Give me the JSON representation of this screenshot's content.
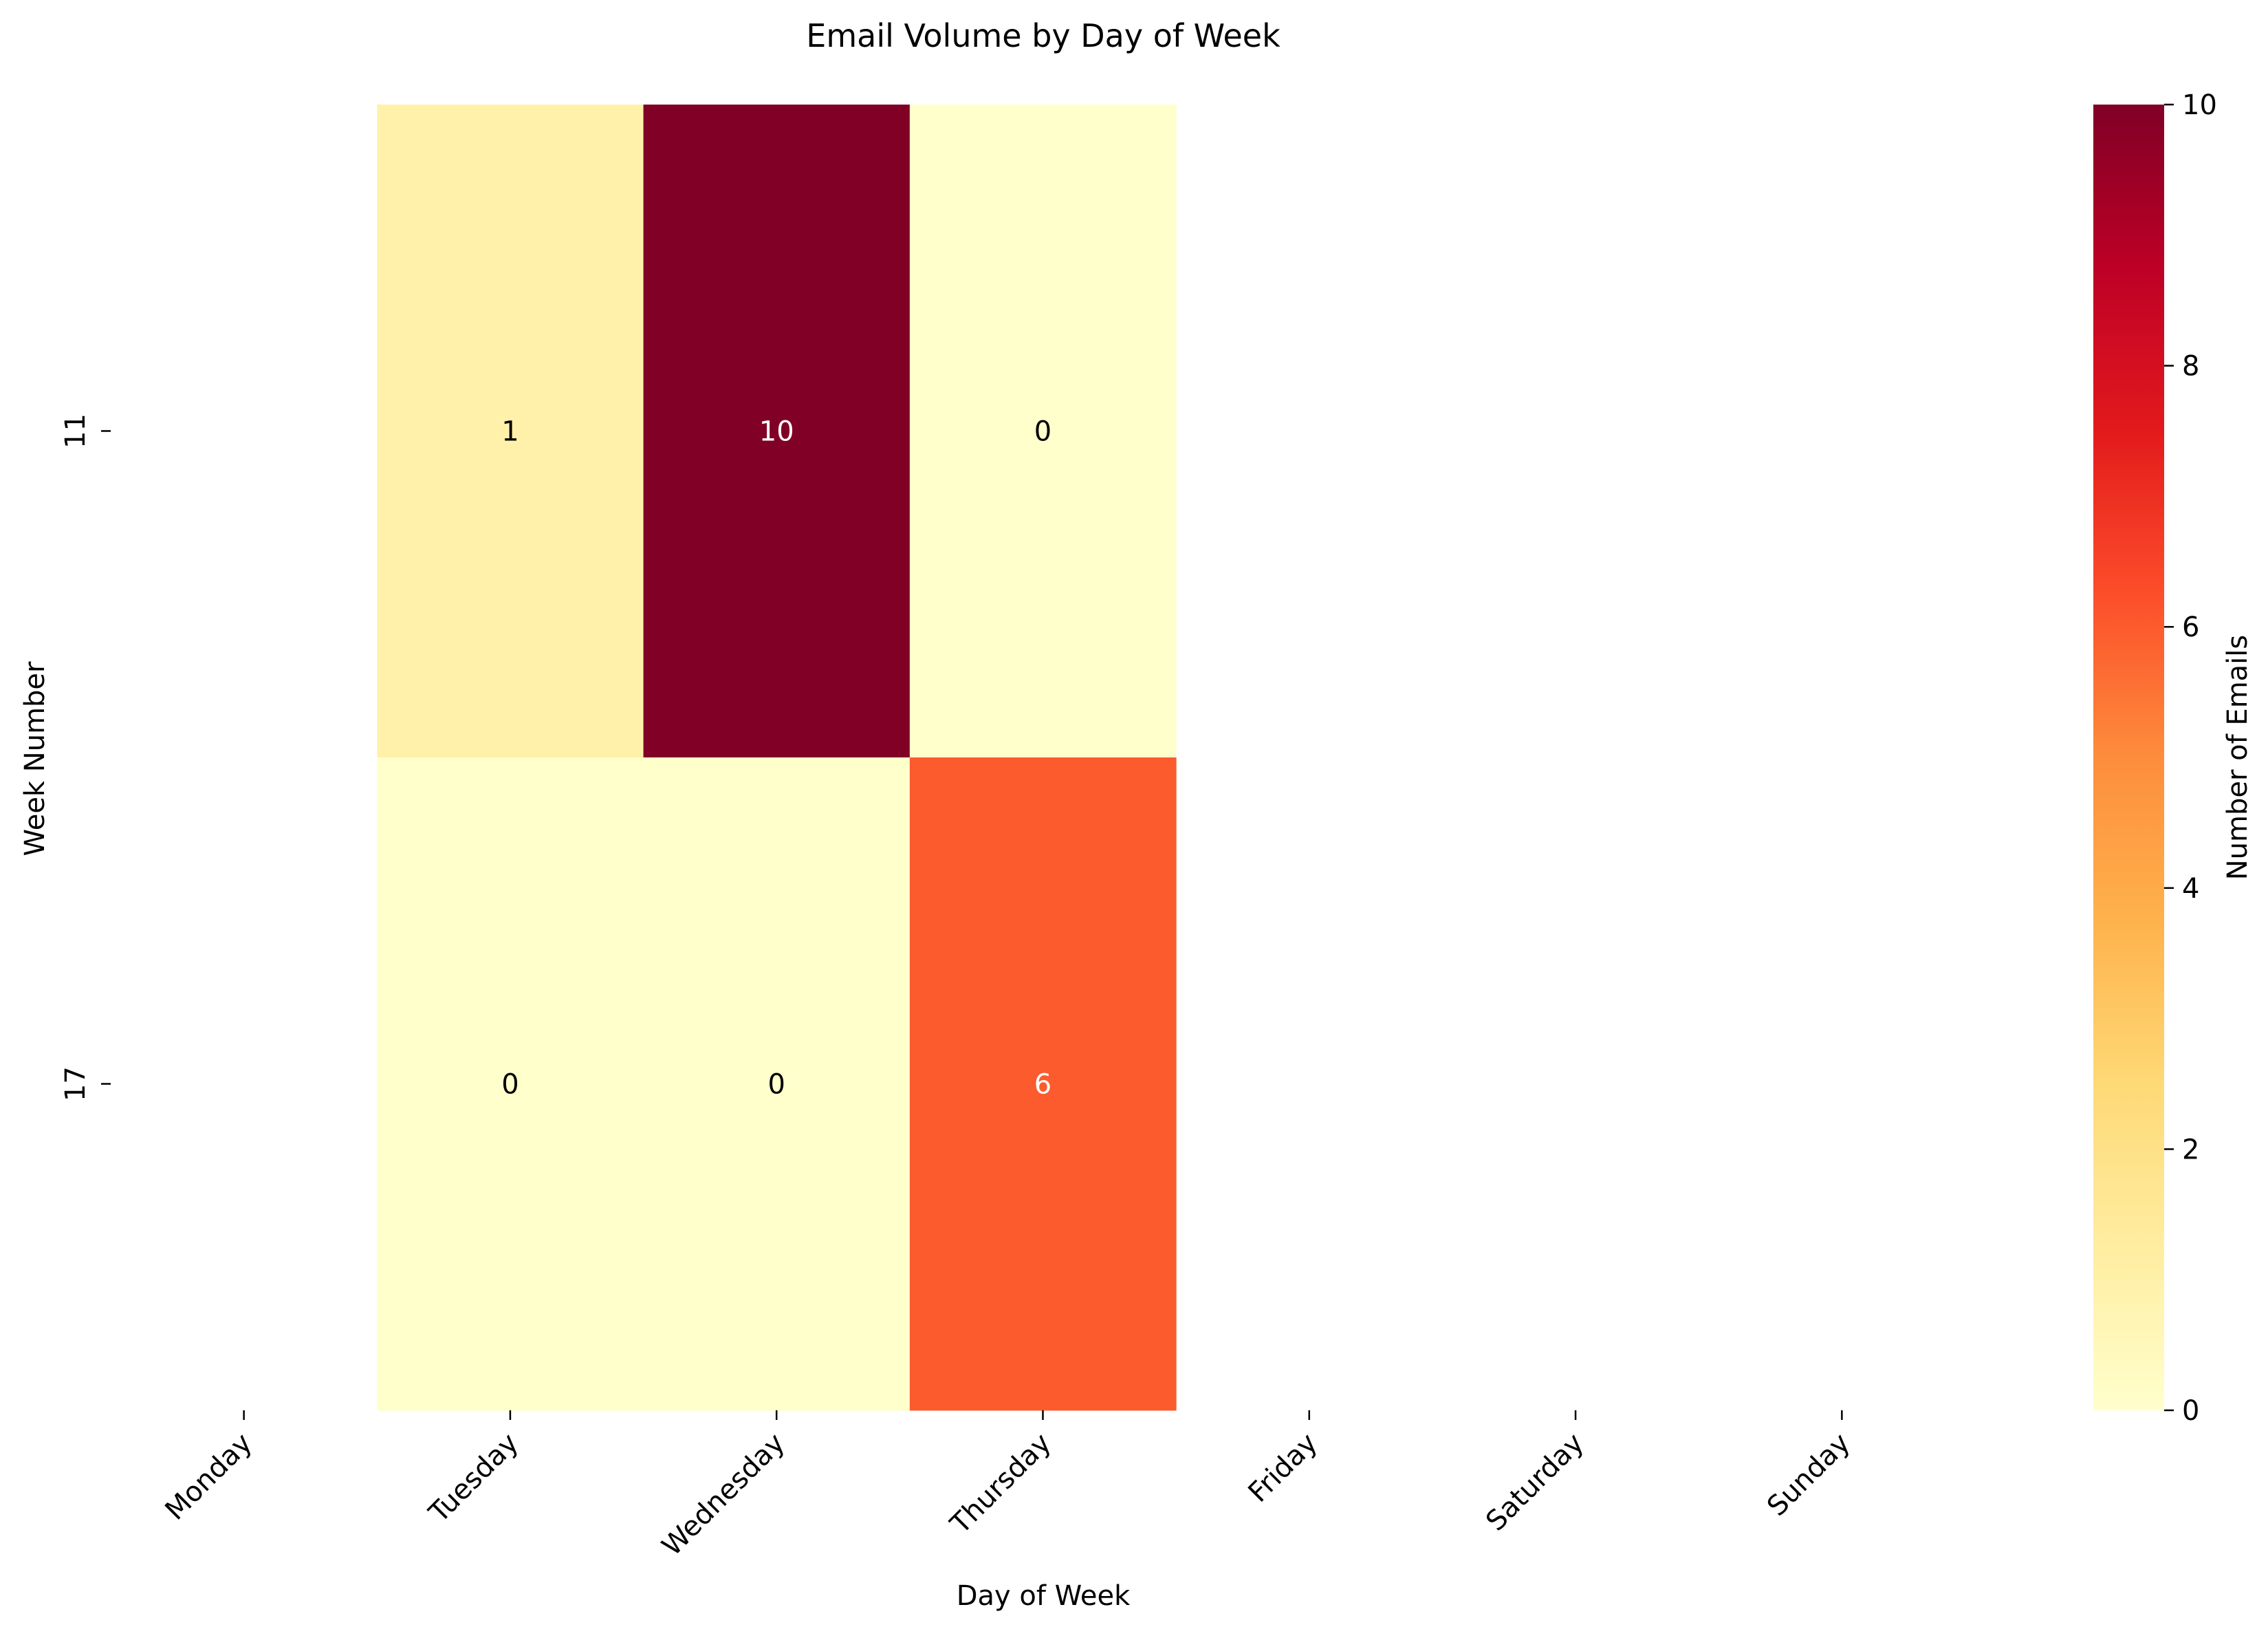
{
  "chart_data": {
    "type": "heatmap",
    "title": "Email Volume by Day of Week",
    "xlabel": "Day of Week",
    "ylabel": "Week Number",
    "x_categories": [
      "Monday",
      "Tuesday",
      "Wednesday",
      "Thursday",
      "Friday",
      "Saturday",
      "Sunday"
    ],
    "y_categories": [
      "11",
      "17"
    ],
    "cells": [
      {
        "x": "Tuesday",
        "y": "11",
        "value": 1
      },
      {
        "x": "Wednesday",
        "y": "11",
        "value": 10
      },
      {
        "x": "Thursday",
        "y": "11",
        "value": 0
      },
      {
        "x": "Tuesday",
        "y": "17",
        "value": 0
      },
      {
        "x": "Wednesday",
        "y": "17",
        "value": 0
      },
      {
        "x": "Thursday",
        "y": "17",
        "value": 6
      }
    ],
    "colorbar": {
      "label": "Number of Emails",
      "range": [
        0,
        10
      ],
      "ticks": [
        0,
        2,
        4,
        6,
        8,
        10
      ],
      "colormap": [
        "#ffffcc",
        "#ffeda0",
        "#fed976",
        "#feb24c",
        "#fd8d3c",
        "#fc4e2a",
        "#e31a1c",
        "#bd0026",
        "#800026"
      ]
    }
  }
}
